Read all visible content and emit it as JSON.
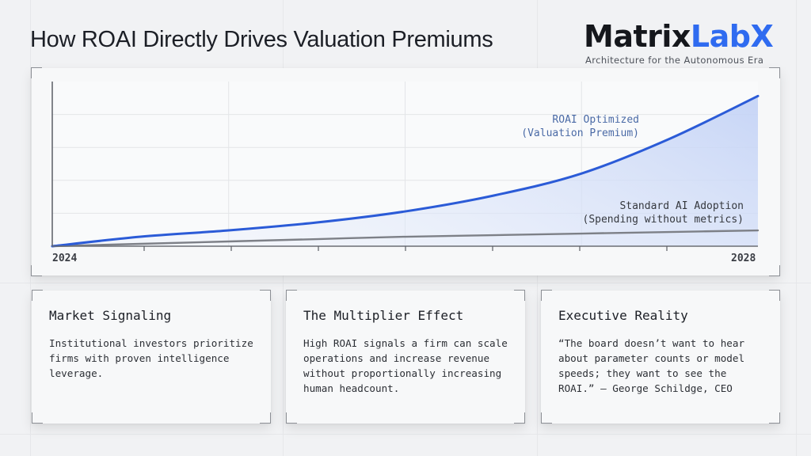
{
  "header": {
    "title": "How ROAI Directly Drives Valuation Premiums",
    "brand": {
      "name_dark": "Matrix",
      "name_accent": "LabX",
      "tagline": "Architecture for the Autonomous Era",
      "accent_color": "#2f6bf0"
    }
  },
  "chart_data": {
    "type": "area",
    "title": "How ROAI Directly Drives Valuation Premiums",
    "xlabel": "",
    "ylabel": "",
    "x_tick_labels": [
      "2024",
      "2028"
    ],
    "x": [
      2024,
      2024.5,
      2025,
      2025.5,
      2026,
      2026.5,
      2027,
      2027.5,
      2028
    ],
    "xlim": [
      2024,
      2028
    ],
    "ylim": [
      0,
      100
    ],
    "grid": true,
    "legend_position": "inline annotations",
    "series": [
      {
        "name": "ROAI Optimized (Valuation Premium)",
        "color": "#2b5bd7",
        "fill": "#c9d6f6",
        "values": [
          0,
          6,
          10,
          15,
          22,
          32,
          46,
          68,
          95
        ]
      },
      {
        "name": "Standard AI Adoption (Spending without metrics)",
        "color": "#7d8087",
        "values": [
          0,
          1.5,
          3,
          4.5,
          6,
          7,
          8,
          9,
          10
        ]
      }
    ],
    "annotations": [
      {
        "text_line1": "ROAI Optimized",
        "text_line2": "(Valuation Premium)",
        "series": 0
      },
      {
        "text_line1": "Standard AI Adoption",
        "text_line2": "(Spending without metrics)",
        "series": 1
      }
    ]
  },
  "cards": [
    {
      "title": "Market Signaling",
      "body": "Institutional investors prioritize firms with proven intelligence leverage."
    },
    {
      "title": "The Multiplier Effect",
      "body": "High ROAI signals a firm can scale operations and increase revenue without proportionally increasing human headcount."
    },
    {
      "title": "Executive Reality",
      "body": "“The board doesn’t want to hear about parameter counts or model speeds; they want to see the ROAI.” — George Schildge, CEO"
    }
  ]
}
